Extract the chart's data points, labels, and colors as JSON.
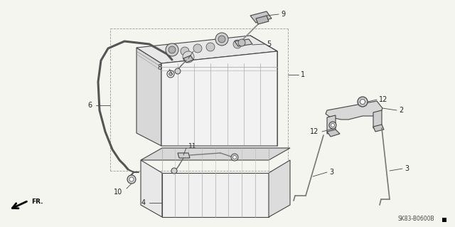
{
  "bg_color": "#f5f5f0",
  "line_color": "#444444",
  "footer_text": "SK83-B0600B"
}
